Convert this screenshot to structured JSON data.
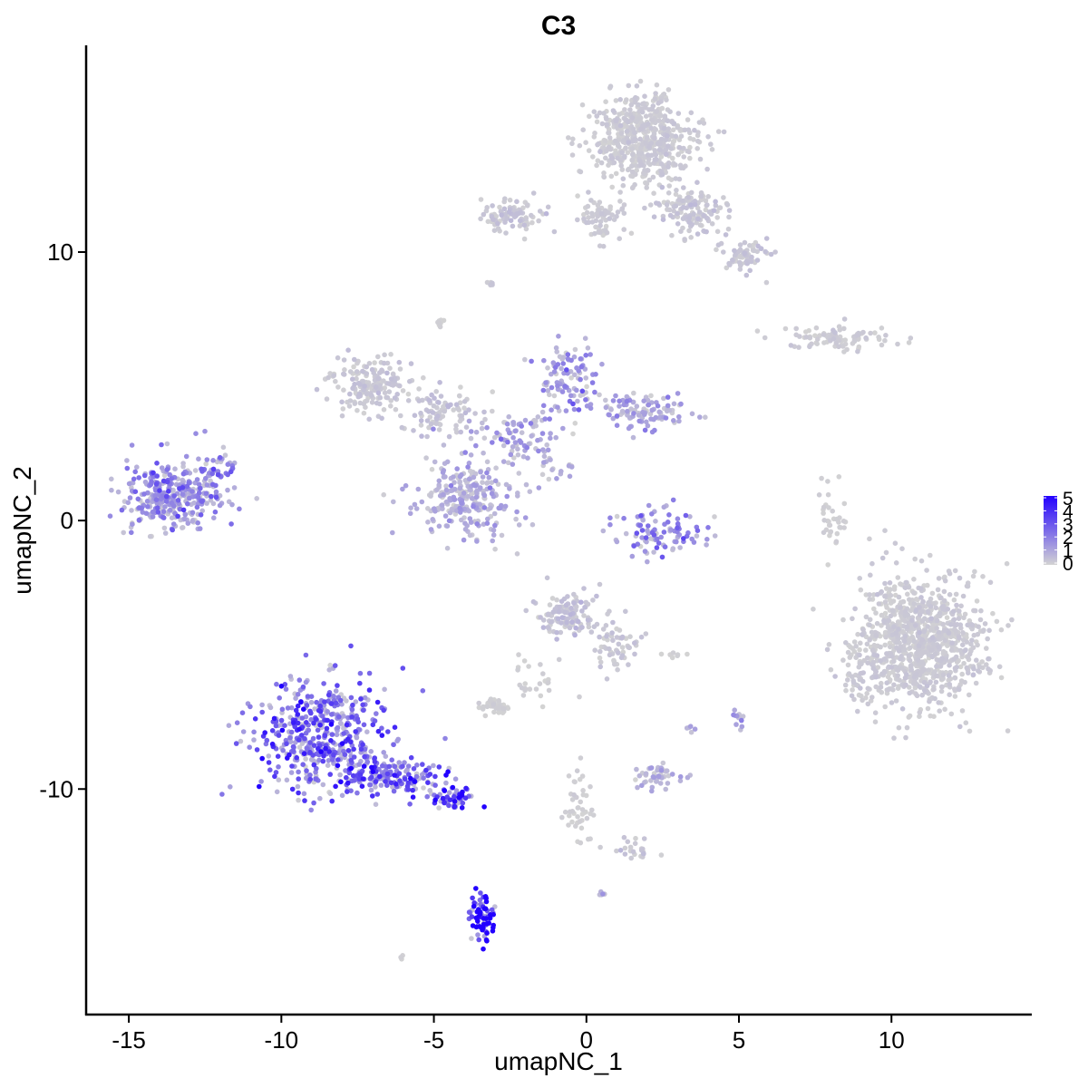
{
  "chart_data": {
    "type": "scatter",
    "title": "C3",
    "xlabel": "umapNC_1",
    "ylabel": "umapNC_2",
    "xlim": [
      -16.4,
      14.6
    ],
    "ylim": [
      -18.4,
      17.7
    ],
    "x_ticks": [
      -15,
      -10,
      -5,
      0,
      5,
      10
    ],
    "x_tick_labels": [
      "-15",
      "-10",
      "-5",
      "0",
      "5",
      "10"
    ],
    "y_ticks": [
      -10,
      0,
      10
    ],
    "y_tick_labels": [
      "-10",
      "0",
      "10"
    ],
    "grid": false,
    "legend_position": "right",
    "color_scale": {
      "feature": "C3",
      "range": [
        0,
        5
      ],
      "ticks": [
        0,
        1,
        2,
        3,
        4,
        5
      ],
      "tick_labels": [
        "0",
        "1",
        "2",
        "3",
        "4",
        "5"
      ],
      "low_color": "#d3d3d3",
      "high_color": "#2200ff"
    },
    "clusters": [
      {
        "x": -13.6,
        "y": 0.9,
        "sx": 1.0,
        "sy": 0.8,
        "n": 320,
        "expr": 1.6
      },
      {
        "x": -12.2,
        "y": 1.8,
        "sx": 0.5,
        "sy": 0.6,
        "n": 60,
        "expr": 1.8
      },
      {
        "x": -8.6,
        "y": -8.0,
        "sx": 1.3,
        "sy": 1.3,
        "n": 500,
        "expr": 2.6
      },
      {
        "x": -6.2,
        "y": -9.6,
        "sx": 1.0,
        "sy": 0.4,
        "n": 130,
        "expr": 3.0
      },
      {
        "x": -4.5,
        "y": -10.3,
        "sx": 0.5,
        "sy": 0.25,
        "n": 60,
        "expr": 3.6
      },
      {
        "x": -3.4,
        "y": -14.8,
        "sx": 0.25,
        "sy": 0.5,
        "n": 70,
        "expr": 4.5
      },
      {
        "x": -4.0,
        "y": 0.8,
        "sx": 1.1,
        "sy": 0.9,
        "n": 260,
        "expr": 0.9
      },
      {
        "x": -7.0,
        "y": 5.1,
        "sx": 0.9,
        "sy": 0.6,
        "n": 170,
        "expr": 0.3
      },
      {
        "x": -4.8,
        "y": 4.0,
        "sx": 0.9,
        "sy": 0.5,
        "n": 90,
        "expr": 0.4
      },
      {
        "x": -2.3,
        "y": 3.0,
        "sx": 0.9,
        "sy": 0.6,
        "n": 90,
        "expr": 1.2
      },
      {
        "x": -0.6,
        "y": 5.2,
        "sx": 0.6,
        "sy": 0.8,
        "n": 100,
        "expr": 1.6
      },
      {
        "x": 1.8,
        "y": 4.1,
        "sx": 0.9,
        "sy": 0.4,
        "n": 110,
        "expr": 1.1
      },
      {
        "x": 2.5,
        "y": -0.5,
        "sx": 1.0,
        "sy": 0.6,
        "n": 100,
        "expr": 1.7
      },
      {
        "x": 1.9,
        "y": 14.2,
        "sx": 1.0,
        "sy": 1.0,
        "n": 550,
        "expr": 0.2
      },
      {
        "x": 3.5,
        "y": 11.5,
        "sx": 0.8,
        "sy": 0.6,
        "n": 140,
        "expr": 0.3
      },
      {
        "x": 5.3,
        "y": 9.9,
        "sx": 0.5,
        "sy": 0.4,
        "n": 70,
        "expr": 0.3
      },
      {
        "x": 0.6,
        "y": 11.3,
        "sx": 0.6,
        "sy": 0.5,
        "n": 70,
        "expr": 0.2
      },
      {
        "x": -2.4,
        "y": 11.4,
        "sx": 0.7,
        "sy": 0.4,
        "n": 90,
        "expr": 0.3
      },
      {
        "x": 8.3,
        "y": 6.8,
        "sx": 1.1,
        "sy": 0.3,
        "n": 90,
        "expr": 0.2
      },
      {
        "x": 8.1,
        "y": 0.2,
        "sx": 0.3,
        "sy": 0.8,
        "n": 35,
        "expr": 0.1
      },
      {
        "x": 11.0,
        "y": -4.4,
        "sx": 1.3,
        "sy": 1.5,
        "n": 900,
        "expr": 0.2
      },
      {
        "x": 9.2,
        "y": -5.5,
        "sx": 0.6,
        "sy": 0.8,
        "n": 80,
        "expr": 0.2
      },
      {
        "x": -0.7,
        "y": -3.5,
        "sx": 0.6,
        "sy": 0.5,
        "n": 120,
        "expr": 0.4
      },
      {
        "x": 1.0,
        "y": -4.6,
        "sx": 0.5,
        "sy": 0.7,
        "n": 60,
        "expr": 0.3
      },
      {
        "x": -3.0,
        "y": -6.9,
        "sx": 0.3,
        "sy": 0.2,
        "n": 45,
        "expr": 0.1
      },
      {
        "x": -1.8,
        "y": -5.8,
        "sx": 0.6,
        "sy": 0.6,
        "n": 25,
        "expr": 0.1
      },
      {
        "x": 2.3,
        "y": -9.5,
        "sx": 0.45,
        "sy": 0.25,
        "n": 50,
        "expr": 0.8
      },
      {
        "x": -0.3,
        "y": -10.8,
        "sx": 0.35,
        "sy": 0.9,
        "n": 45,
        "expr": 0.1
      },
      {
        "x": 1.5,
        "y": -12.2,
        "sx": 0.6,
        "sy": 0.25,
        "n": 25,
        "expr": 0.3
      },
      {
        "x": -3.1,
        "y": 8.8,
        "sx": 0.1,
        "sy": 0.1,
        "n": 6,
        "expr": 0.2
      },
      {
        "x": -4.8,
        "y": 7.4,
        "sx": 0.1,
        "sy": 0.15,
        "n": 8,
        "expr": 0.1
      },
      {
        "x": 5.0,
        "y": -7.4,
        "sx": 0.15,
        "sy": 0.25,
        "n": 12,
        "expr": 1.5
      },
      {
        "x": 2.9,
        "y": -5.0,
        "sx": 0.3,
        "sy": 0.1,
        "n": 8,
        "expr": 0.1
      },
      {
        "x": 3.4,
        "y": -7.7,
        "sx": 0.1,
        "sy": 0.1,
        "n": 5,
        "expr": 1.0
      },
      {
        "x": 0.5,
        "y": -13.8,
        "sx": 0.1,
        "sy": 0.1,
        "n": 5,
        "expr": 1.0
      },
      {
        "x": -6.1,
        "y": -16.3,
        "sx": 0.1,
        "sy": 0.05,
        "n": 3,
        "expr": 0.1
      },
      {
        "x": -1.0,
        "y": 2.0,
        "sx": 0.4,
        "sy": 0.3,
        "n": 15,
        "expr": 0.8
      }
    ]
  }
}
